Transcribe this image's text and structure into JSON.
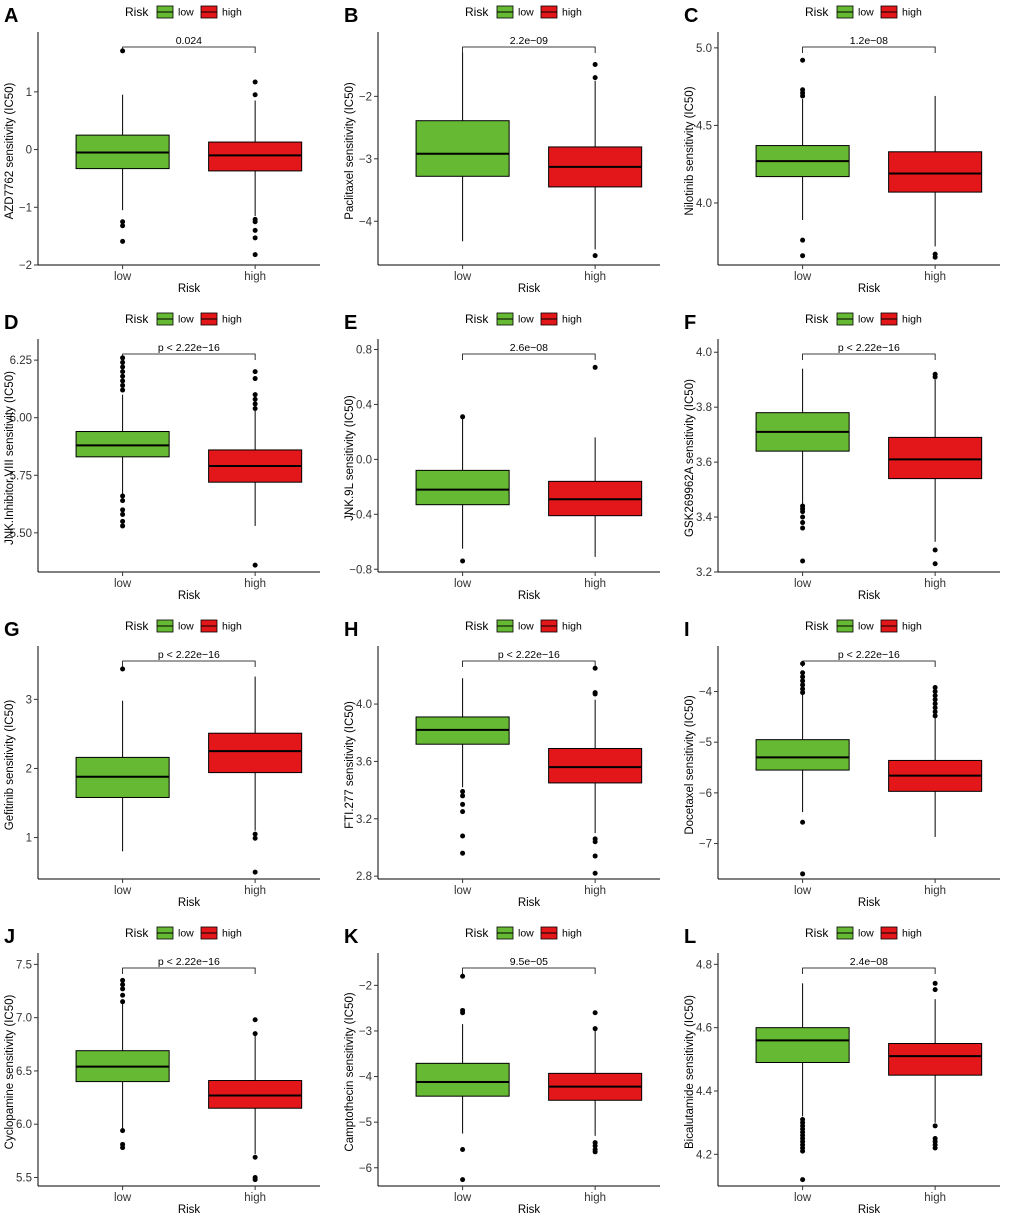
{
  "chart_data": [
    {
      "type": "box",
      "panel": "A",
      "ylabel": "AZD7762 sensitivity (IC50)",
      "xlabel": "Risk",
      "categories": [
        "low",
        "high"
      ],
      "legend": {
        "title": "Risk",
        "entries": [
          "low",
          "high"
        ]
      },
      "pvalue": "0.024",
      "ylim": [
        -2.0,
        1.95
      ],
      "yticks": [
        {
          "value": -2,
          "label": "−2"
        },
        {
          "value": -1,
          "label": "−1"
        },
        {
          "value": 0,
          "label": "0"
        },
        {
          "value": 1,
          "label": "1"
        }
      ],
      "boxes": [
        {
          "group": "low",
          "whisker_low": -1.05,
          "q1": -0.33,
          "median": -0.05,
          "q3": 0.25,
          "whisker_high": 0.95,
          "outliers": [
            1.71,
            -1.25,
            -1.32,
            -1.59
          ]
        },
        {
          "group": "high",
          "whisker_low": -1.15,
          "q1": -0.37,
          "median": -0.1,
          "q3": 0.13,
          "whisker_high": 0.85,
          "outliers": [
            1.17,
            0.95,
            -1.21,
            -1.25,
            -1.4,
            -1.53,
            -1.82
          ]
        }
      ]
    },
    {
      "type": "box",
      "panel": "B",
      "ylabel": "Paclitaxel sensitivity (IC50)",
      "xlabel": "Risk",
      "categories": [
        "low",
        "high"
      ],
      "legend": {
        "title": "Risk",
        "entries": [
          "low",
          "high"
        ]
      },
      "pvalue": "2.2e−09",
      "ylim": [
        -4.7,
        -1.05
      ],
      "yticks": [
        {
          "value": -4,
          "label": "−4"
        },
        {
          "value": -3,
          "label": "−3"
        },
        {
          "value": -2,
          "label": "−2"
        }
      ],
      "boxes": [
        {
          "group": "low",
          "whisker_low": -4.32,
          "q1": -3.28,
          "median": -2.92,
          "q3": -2.39,
          "whisker_high": -1.3,
          "outliers": []
        },
        {
          "group": "high",
          "whisker_low": -4.45,
          "q1": -3.45,
          "median": -3.13,
          "q3": -2.81,
          "whisker_high": -1.75,
          "outliers": [
            -1.49,
            -1.7,
            -4.55
          ]
        }
      ]
    },
    {
      "type": "box",
      "panel": "C",
      "ylabel": "Nilotinib sensitivity (IC50)",
      "xlabel": "Risk",
      "categories": [
        "low",
        "high"
      ],
      "legend": {
        "title": "Risk",
        "entries": [
          "low",
          "high"
        ]
      },
      "pvalue": "1.2e−08",
      "ylim": [
        3.6,
        5.07
      ],
      "yticks": [
        {
          "value": 4.0,
          "label": "4.0"
        },
        {
          "value": 4.5,
          "label": "4.5"
        },
        {
          "value": 5.0,
          "label": "5.0"
        }
      ],
      "boxes": [
        {
          "group": "low",
          "whisker_low": 3.89,
          "q1": 4.17,
          "median": 4.27,
          "q3": 4.37,
          "whisker_high": 4.67,
          "outliers": [
            4.92,
            4.73,
            4.71,
            4.69,
            3.76,
            3.66
          ]
        },
        {
          "group": "high",
          "whisker_low": 3.72,
          "q1": 4.07,
          "median": 4.19,
          "q3": 4.33,
          "whisker_high": 4.69,
          "outliers": [
            3.67,
            3.65
          ]
        }
      ]
    },
    {
      "type": "box",
      "panel": "D",
      "ylabel": "JNK.Inhibitor.VIII sensitivity (IC50)",
      "xlabel": "Risk",
      "categories": [
        "low",
        "high"
      ],
      "legend": {
        "title": "Risk",
        "entries": [
          "low",
          "high"
        ]
      },
      "pvalue": "p < 2.22e−16",
      "ylim": [
        5.33,
        6.32
      ],
      "yticks": [
        {
          "value": 5.5,
          "label": "5.50"
        },
        {
          "value": 5.75,
          "label": "5.75"
        },
        {
          "value": 6.0,
          "label": "6.00"
        },
        {
          "value": 6.25,
          "label": "6.25"
        }
      ],
      "boxes": [
        {
          "group": "low",
          "whisker_low": 5.67,
          "q1": 5.83,
          "median": 5.88,
          "q3": 5.94,
          "whisker_high": 6.1,
          "outliers": [
            6.26,
            6.24,
            6.22,
            6.2,
            6.18,
            6.16,
            6.14,
            6.12,
            5.66,
            5.64,
            5.6,
            5.58,
            5.55,
            5.53
          ]
        },
        {
          "group": "high",
          "whisker_low": 5.53,
          "q1": 5.72,
          "median": 5.79,
          "q3": 5.86,
          "whisker_high": 6.03,
          "outliers": [
            6.2,
            6.17,
            6.1,
            6.08,
            6.06,
            6.04,
            5.36
          ]
        }
      ]
    },
    {
      "type": "box",
      "panel": "E",
      "ylabel": "JNK.9L sensitivity (IC50)",
      "xlabel": "Risk",
      "categories": [
        "low",
        "high"
      ],
      "legend": {
        "title": "Risk",
        "entries": [
          "low",
          "high"
        ]
      },
      "pvalue": "2.6e−08",
      "ylim": [
        -0.82,
        0.84
      ],
      "yticks": [
        {
          "value": -0.8,
          "label": "−0.8"
        },
        {
          "value": -0.4,
          "label": "−0.4"
        },
        {
          "value": 0.0,
          "label": "0.0"
        },
        {
          "value": 0.4,
          "label": "0.4"
        },
        {
          "value": 0.8,
          "label": "0.8"
        }
      ],
      "boxes": [
        {
          "group": "low",
          "whisker_low": -0.65,
          "q1": -0.33,
          "median": -0.22,
          "q3": -0.08,
          "whisker_high": 0.3,
          "outliers": [
            0.31,
            -0.74
          ]
        },
        {
          "group": "high",
          "whisker_low": -0.71,
          "q1": -0.41,
          "median": -0.29,
          "q3": -0.16,
          "whisker_high": 0.16,
          "outliers": [
            0.67
          ]
        }
      ]
    },
    {
      "type": "box",
      "panel": "F",
      "ylabel": "GSK269962A sensitivity (IC50)",
      "xlabel": "Risk",
      "categories": [
        "low",
        "high"
      ],
      "legend": {
        "title": "Risk",
        "entries": [
          "low",
          "high"
        ]
      },
      "pvalue": "p < 2.22e−16",
      "ylim": [
        3.2,
        4.03
      ],
      "yticks": [
        {
          "value": 3.2,
          "label": "3.2"
        },
        {
          "value": 3.4,
          "label": "3.4"
        },
        {
          "value": 3.6,
          "label": "3.6"
        },
        {
          "value": 3.8,
          "label": "3.8"
        },
        {
          "value": 4.0,
          "label": "4.0"
        }
      ],
      "boxes": [
        {
          "group": "low",
          "whisker_low": 3.44,
          "q1": 3.64,
          "median": 3.71,
          "q3": 3.78,
          "whisker_high": 3.94,
          "outliers": [
            3.44,
            3.43,
            3.42,
            3.4,
            3.38,
            3.36,
            3.24
          ]
        },
        {
          "group": "high",
          "whisker_low": 3.31,
          "q1": 3.54,
          "median": 3.61,
          "q3": 3.69,
          "whisker_high": 3.9,
          "outliers": [
            3.92,
            3.91,
            3.28,
            3.23
          ]
        }
      ]
    },
    {
      "type": "box",
      "panel": "G",
      "ylabel": "Gefitinib sensitivity (IC50)",
      "xlabel": "Risk",
      "categories": [
        "low",
        "high"
      ],
      "legend": {
        "title": "Risk",
        "entries": [
          "low",
          "high"
        ]
      },
      "pvalue": "p < 2.22e−16",
      "ylim": [
        0.4,
        3.7
      ],
      "yticks": [
        {
          "value": 1,
          "label": "1"
        },
        {
          "value": 2,
          "label": "2"
        },
        {
          "value": 3,
          "label": "3"
        }
      ],
      "boxes": [
        {
          "group": "low",
          "whisker_low": 0.8,
          "q1": 1.58,
          "median": 1.88,
          "q3": 2.16,
          "whisker_high": 2.98,
          "outliers": [
            3.44
          ]
        },
        {
          "group": "high",
          "whisker_low": 1.1,
          "q1": 1.94,
          "median": 2.25,
          "q3": 2.51,
          "whisker_high": 3.33,
          "outliers": [
            1.05,
            0.99,
            0.5
          ]
        }
      ]
    },
    {
      "type": "box",
      "panel": "H",
      "ylabel": "FTI.277 sensitivity (IC50)",
      "xlabel": "Risk",
      "categories": [
        "low",
        "high"
      ],
      "legend": {
        "title": "Risk",
        "entries": [
          "low",
          "high"
        ]
      },
      "pvalue": "p < 2.22e−16",
      "ylim": [
        2.78,
        4.37
      ],
      "yticks": [
        {
          "value": 2.8,
          "label": "2.8"
        },
        {
          "value": 3.2,
          "label": "3.2"
        },
        {
          "value": 3.6,
          "label": "3.6"
        },
        {
          "value": 4.0,
          "label": "4.0"
        }
      ],
      "boxes": [
        {
          "group": "low",
          "whisker_low": 3.42,
          "q1": 3.72,
          "median": 3.82,
          "q3": 3.91,
          "whisker_high": 4.18,
          "outliers": [
            3.39,
            3.36,
            3.3,
            3.25,
            3.08,
            2.96
          ]
        },
        {
          "group": "high",
          "whisker_low": 3.1,
          "q1": 3.45,
          "median": 3.56,
          "q3": 3.69,
          "whisker_high": 4.03,
          "outliers": [
            4.25,
            4.08,
            4.07,
            3.06,
            3.04,
            2.94,
            2.82
          ]
        }
      ]
    },
    {
      "type": "box",
      "panel": "I",
      "ylabel": "Docetaxel sensitivity (IC50)",
      "xlabel": "Risk",
      "categories": [
        "low",
        "high"
      ],
      "legend": {
        "title": "Risk",
        "entries": [
          "low",
          "high"
        ]
      },
      "pvalue": "p < 2.22e−16",
      "ylim": [
        -7.7,
        -3.2
      ],
      "yticks": [
        {
          "value": -7,
          "label": "−7"
        },
        {
          "value": -6,
          "label": "−6"
        },
        {
          "value": -5,
          "label": "−5"
        },
        {
          "value": -4,
          "label": "−4"
        }
      ],
      "boxes": [
        {
          "group": "low",
          "whisker_low": -6.38,
          "q1": -5.55,
          "median": -5.3,
          "q3": -4.95,
          "whisker_high": -4.05,
          "outliers": [
            -3.45,
            -3.63,
            -3.71,
            -3.79,
            -3.87,
            -3.95,
            -4.02,
            -6.58,
            -7.6
          ]
        },
        {
          "group": "high",
          "whisker_low": -6.87,
          "q1": -5.97,
          "median": -5.66,
          "q3": -5.36,
          "whisker_high": -4.5,
          "outliers": [
            -3.92,
            -4.0,
            -4.08,
            -4.16,
            -4.24,
            -4.32,
            -4.4,
            -4.48
          ]
        }
      ]
    },
    {
      "type": "box",
      "panel": "J",
      "ylabel": "Cyclopamine sensitivity (IC50)",
      "xlabel": "Risk",
      "categories": [
        "low",
        "high"
      ],
      "legend": {
        "title": "Risk",
        "entries": [
          "low",
          "high"
        ]
      },
      "pvalue": "p < 2.22e−16",
      "ylim": [
        5.42,
        7.56
      ],
      "yticks": [
        {
          "value": 5.5,
          "label": "5.5"
        },
        {
          "value": 6.0,
          "label": "6.0"
        },
        {
          "value": 6.5,
          "label": "6.5"
        },
        {
          "value": 7.0,
          "label": "7.0"
        },
        {
          "value": 7.5,
          "label": "7.5"
        }
      ],
      "boxes": [
        {
          "group": "low",
          "whisker_low": 5.95,
          "q1": 6.4,
          "median": 6.54,
          "q3": 6.69,
          "whisker_high": 7.15,
          "outliers": [
            7.35,
            7.31,
            7.27,
            7.21,
            7.15,
            5.94,
            5.81,
            5.78
          ]
        },
        {
          "group": "high",
          "whisker_low": 5.72,
          "q1": 6.15,
          "median": 6.27,
          "q3": 6.41,
          "whisker_high": 6.83,
          "outliers": [
            6.98,
            6.85,
            5.69,
            5.5,
            5.48
          ]
        }
      ]
    },
    {
      "type": "box",
      "panel": "K",
      "ylabel": "Camptothecin sensitivity (IC50)",
      "xlabel": "Risk",
      "categories": [
        "low",
        "high"
      ],
      "legend": {
        "title": "Risk",
        "entries": [
          "low",
          "high"
        ]
      },
      "pvalue": "9.5e−05",
      "ylim": [
        -6.4,
        -1.4
      ],
      "yticks": [
        {
          "value": -6,
          "label": "−6"
        },
        {
          "value": -5,
          "label": "−5"
        },
        {
          "value": -4,
          "label": "−4"
        },
        {
          "value": -3,
          "label": "−3"
        },
        {
          "value": -2,
          "label": "−2"
        }
      ],
      "boxes": [
        {
          "group": "low",
          "whisker_low": -5.25,
          "q1": -4.43,
          "median": -4.12,
          "q3": -3.71,
          "whisker_high": -2.85,
          "outliers": [
            -1.8,
            -2.55,
            -2.6,
            -5.6,
            -6.26
          ]
        },
        {
          "group": "high",
          "whisker_low": -5.3,
          "q1": -4.52,
          "median": -4.22,
          "q3": -3.93,
          "whisker_high": -3.0,
          "outliers": [
            -2.6,
            -2.95,
            -5.45,
            -5.52,
            -5.6,
            -5.65
          ]
        }
      ]
    },
    {
      "type": "box",
      "panel": "L",
      "ylabel": "Bicalutamide sensitivity (IC50)",
      "xlabel": "Risk",
      "categories": [
        "low",
        "high"
      ],
      "legend": {
        "title": "Risk",
        "entries": [
          "low",
          "high"
        ]
      },
      "pvalue": "2.4e−08",
      "ylim": [
        4.1,
        4.82
      ],
      "yticks": [
        {
          "value": 4.2,
          "label": "4.2"
        },
        {
          "value": 4.4,
          "label": "4.4"
        },
        {
          "value": 4.6,
          "label": "4.6"
        },
        {
          "value": 4.8,
          "label": "4.8"
        }
      ],
      "boxes": [
        {
          "group": "low",
          "whisker_low": 4.32,
          "q1": 4.49,
          "median": 4.56,
          "q3": 4.6,
          "whisker_high": 4.74,
          "outliers": [
            4.31,
            4.3,
            4.29,
            4.28,
            4.27,
            4.26,
            4.25,
            4.24,
            4.23,
            4.22,
            4.21,
            4.12
          ]
        },
        {
          "group": "high",
          "whisker_low": 4.3,
          "q1": 4.45,
          "median": 4.51,
          "q3": 4.55,
          "whisker_high": 4.69,
          "outliers": [
            4.74,
            4.72,
            4.29,
            4.25,
            4.24,
            4.23,
            4.22
          ]
        }
      ]
    }
  ],
  "colors": {
    "low": "#66b933",
    "high": "#e3171a",
    "outline": "#000000"
  }
}
